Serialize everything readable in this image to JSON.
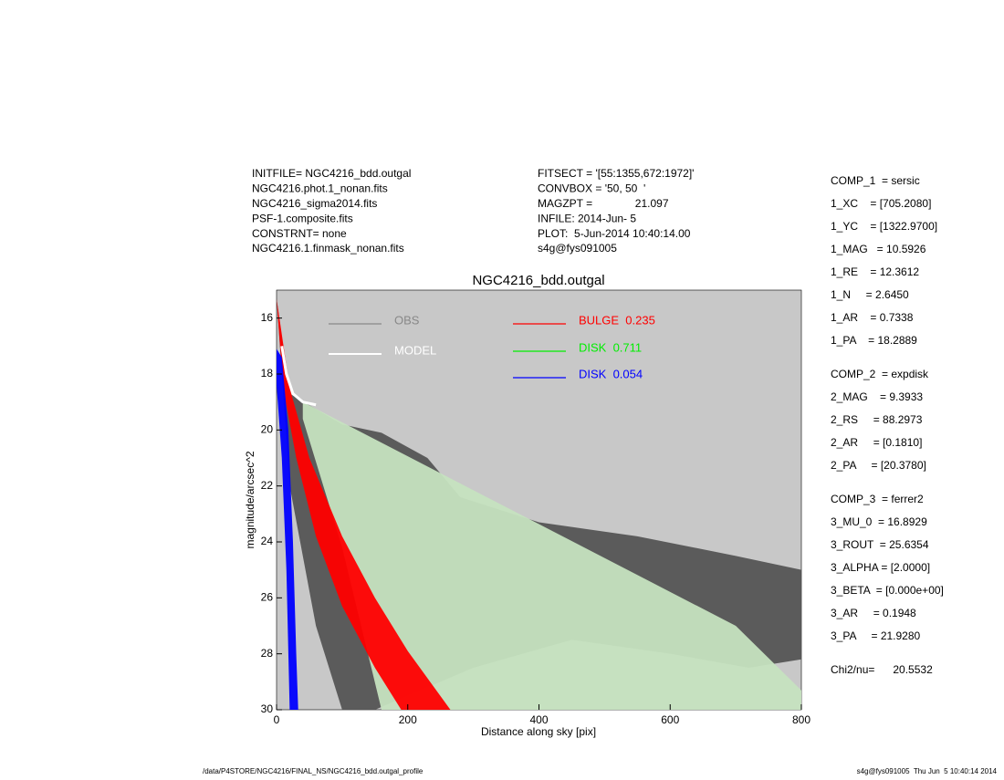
{
  "chart_data": {
    "type": "scatter",
    "title": "NGC4216_bdd.outgal",
    "x_label": "Distance along sky [pix]",
    "y_label": "magnitude/arcsec^2",
    "xlim": [
      0,
      800
    ],
    "xticks": [
      0,
      200,
      400,
      600,
      800
    ],
    "ylim": [
      30,
      15
    ],
    "yticks": [
      16,
      18,
      20,
      22,
      24,
      26,
      28,
      30
    ],
    "background": "#c8c8c8",
    "header_left": [
      "INITFILE= NGC4216_bdd.outgal",
      "NGC4216.phot.1_nonan.fits",
      "NGC4216_sigma2014.fits",
      "PSF-1.composite.fits",
      "CONSTRNT= none",
      "NGC4216.1.finmask_nonan.fits"
    ],
    "header_mid": [
      "FITSECT = '[55:1355,672:1972]'",
      "CONVBOX = '50, 50  '",
      "MAGZPT =              21.097",
      "INFILE: 2014-Jun- 5",
      "PLOT:  5-Jun-2014 10:40:14.00",
      "s4g@fys091005"
    ],
    "params": [
      [
        "COMP_1  = sersic",
        "1_XC    = [705.2080]",
        "1_YC    = [1322.9700]",
        "1_MAG   = 10.5926",
        "1_RE    = 12.3612",
        "1_N     = 2.6450",
        "1_AR    = 0.7338",
        "1_PA    = 18.2889"
      ],
      [
        "COMP_2  = expdisk",
        "2_MAG    = 9.3933",
        "2_RS     = 88.2973",
        "2_AR     = [0.1810]",
        "2_PA     = [20.3780]"
      ],
      [
        "COMP_3  = ferrer2",
        "3_MU_0  = 16.8929",
        "3_ROUT  = 25.6354",
        "3_ALPHA = [2.0000]",
        "3_BETA  = [0.000e+00]",
        "3_AR     = 0.1948",
        "3_PA     = 21.9280"
      ],
      [
        "Chi2/nu=      20.5532"
      ]
    ],
    "footer_left": "/data/P4STORE/NGC4216/FINAL_NS/NGC4216_bdd.outgal_profile",
    "footer_right": "s4g@fys091005  Thu Jun  5 10:40:14 2014",
    "series": [
      {
        "name": "OBS",
        "color": "#555555",
        "legend_color": "#888888",
        "outline": [
          [
            0,
            15.3
          ],
          [
            20,
            18.7
          ],
          [
            100,
            19.8
          ],
          [
            160,
            20.1
          ],
          [
            230,
            21.0
          ],
          [
            280,
            22.4
          ],
          [
            400,
            23.3
          ],
          [
            550,
            23.8
          ],
          [
            700,
            24.5
          ],
          [
            800,
            25.0
          ],
          [
            800,
            28.2
          ],
          [
            720,
            28.5
          ],
          [
            600,
            28.0
          ],
          [
            450,
            27.5
          ],
          [
            300,
            28.5
          ],
          [
            200,
            29.5
          ],
          [
            150,
            30
          ],
          [
            100,
            30
          ],
          [
            60,
            27
          ],
          [
            20,
            22
          ]
        ]
      },
      {
        "name": "MODEL",
        "color": "#ffffff",
        "x": [
          8,
          15,
          25,
          40,
          60
        ],
        "values": [
          17.0,
          18.0,
          18.7,
          19.0,
          19.1
        ]
      },
      {
        "name": "BULGE  0.235",
        "color": "#ff0000",
        "outline": [
          [
            0,
            15.3
          ],
          [
            20,
            18.5
          ],
          [
            50,
            21
          ],
          [
            100,
            23.8
          ],
          [
            150,
            26
          ],
          [
            200,
            27.9
          ],
          [
            265,
            30
          ],
          [
            190,
            30
          ],
          [
            150,
            28.5
          ],
          [
            100,
            26.3
          ],
          [
            60,
            23.8
          ],
          [
            30,
            21
          ],
          [
            10,
            18.5
          ]
        ]
      },
      {
        "name": "DISK  0.711",
        "color": "#c6e3c0",
        "outline": [
          [
            40,
            19.0
          ],
          [
            700,
            27.0
          ],
          [
            830,
            30
          ],
          [
            160,
            30
          ],
          [
            100,
            24.2
          ],
          [
            40,
            19.6
          ]
        ]
      },
      {
        "name": "DISK  0.054",
        "color": "#0000ff",
        "outline": [
          [
            0,
            17.1
          ],
          [
            8,
            17.4
          ],
          [
            18,
            20
          ],
          [
            25,
            24
          ],
          [
            30,
            28
          ],
          [
            33,
            30
          ],
          [
            20,
            30
          ],
          [
            15,
            25
          ],
          [
            8,
            21
          ],
          [
            0,
            18.4
          ]
        ]
      }
    ]
  }
}
